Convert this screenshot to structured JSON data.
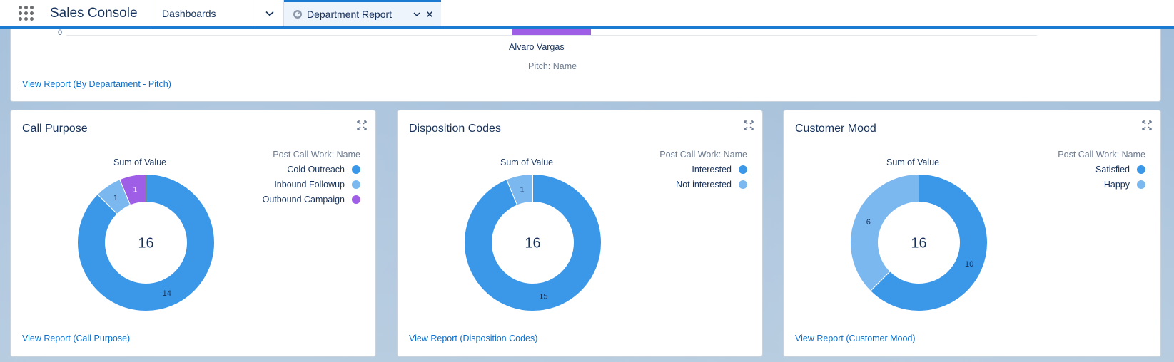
{
  "nav": {
    "app_name": "Sales Console",
    "dashboards_label": "Dashboards",
    "active_tab_label": "Department Report"
  },
  "top_panel": {
    "axis_zero": "0",
    "bar_name": "Alvaro Vargas",
    "axis_label": "Pitch: Name",
    "link": "View Report (By Departament - Pitch)",
    "bar_color": "#9e5ee6"
  },
  "cards": [
    {
      "title": "Call Purpose",
      "sum_label": "Sum of Value",
      "legend_title": "Post Call Work: Name",
      "total": "16",
      "link": "View Report (Call Purpose)",
      "chart_data": {
        "type": "pie",
        "categories": [
          "Cold Outreach",
          "Inbound Followup",
          "Outbound Campaign"
        ],
        "values": [
          14,
          1,
          1
        ],
        "colors": [
          "#3b97e8",
          "#7bb8ef",
          "#9e5ee6"
        ]
      }
    },
    {
      "title": "Disposition Codes",
      "sum_label": "Sum of Value",
      "legend_title": "Post Call Work: Name",
      "total": "16",
      "link": "View Report (Disposition Codes)",
      "chart_data": {
        "type": "pie",
        "categories": [
          "Interested",
          "Not interested"
        ],
        "values": [
          15,
          1
        ],
        "colors": [
          "#3b97e8",
          "#7bb8ef"
        ]
      }
    },
    {
      "title": "Customer Mood",
      "sum_label": "Sum of Value",
      "legend_title": "Post Call Work: Name",
      "total": "16",
      "link": "View Report (Customer Mood)",
      "chart_data": {
        "type": "pie",
        "categories": [
          "Satisfied",
          "Happy"
        ],
        "values": [
          10,
          6
        ],
        "colors": [
          "#3b97e8",
          "#7bb8ef"
        ]
      }
    }
  ]
}
